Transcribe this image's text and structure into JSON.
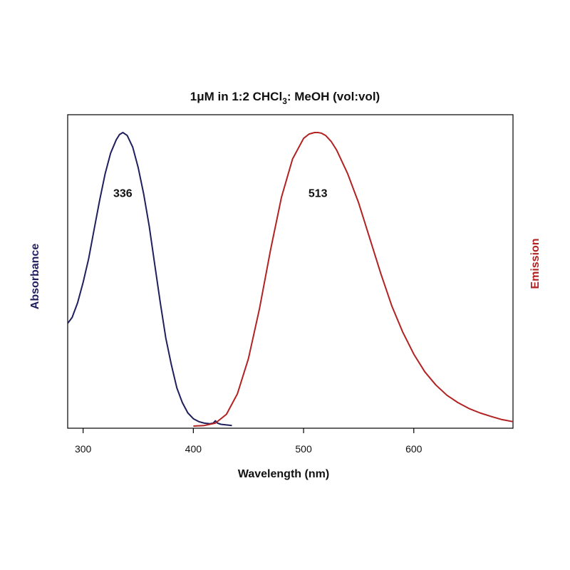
{
  "chart_data": {
    "type": "line",
    "title": {
      "main": "1μM in 1:2 CHCl",
      "subscript": "3",
      "rest": ": MeOH (vol:vol)"
    },
    "xlabel": "Wavelength (nm)",
    "ylabel_left": "Absorbance",
    "ylabel_right": "Emission",
    "xlim": [
      286,
      690
    ],
    "ylim": [
      0,
      1.0
    ],
    "x_ticks": [
      300,
      400,
      500,
      600
    ],
    "grid": false,
    "legend": "none",
    "series": [
      {
        "axis": "left",
        "color": "#1f1f5e",
        "x": [
          286,
          290,
          295,
          300,
          305,
          310,
          315,
          320,
          325,
          330,
          333,
          336,
          340,
          345,
          350,
          355,
          360,
          365,
          370,
          375,
          380,
          385,
          390,
          395,
          400,
          405,
          410,
          415,
          418,
          420,
          422,
          425,
          430,
          435
        ],
        "y": [
          0.35,
          0.37,
          0.42,
          0.49,
          0.57,
          0.67,
          0.77,
          0.86,
          0.93,
          0.975,
          0.993,
          1.0,
          0.99,
          0.95,
          0.88,
          0.79,
          0.68,
          0.55,
          0.42,
          0.3,
          0.21,
          0.13,
          0.08,
          0.045,
          0.025,
          0.015,
          0.01,
          0.008,
          0.01,
          0.018,
          0.01,
          0.006,
          0.004,
          0.002
        ]
      },
      {
        "axis": "right",
        "color": "#b22222",
        "x": [
          400,
          410,
          420,
          430,
          440,
          450,
          460,
          470,
          480,
          490,
          500,
          505,
          510,
          513,
          516,
          520,
          525,
          530,
          540,
          550,
          560,
          570,
          580,
          590,
          600,
          610,
          620,
          630,
          640,
          650,
          660,
          670,
          680,
          690
        ],
        "y": [
          0.0,
          0.002,
          0.01,
          0.04,
          0.11,
          0.23,
          0.4,
          0.6,
          0.78,
          0.91,
          0.98,
          0.995,
          1.0,
          1.0,
          0.998,
          0.99,
          0.97,
          0.94,
          0.86,
          0.76,
          0.64,
          0.52,
          0.41,
          0.32,
          0.245,
          0.185,
          0.14,
          0.105,
          0.08,
          0.06,
          0.045,
          0.033,
          0.022,
          0.015
        ]
      }
    ],
    "annotations": [
      {
        "text": "336",
        "x": 336,
        "y": 0.78
      },
      {
        "text": "513",
        "x": 513,
        "y": 0.78
      }
    ],
    "colors": {
      "absorbance": "#1f1f5e",
      "emission": "#b22222"
    }
  }
}
